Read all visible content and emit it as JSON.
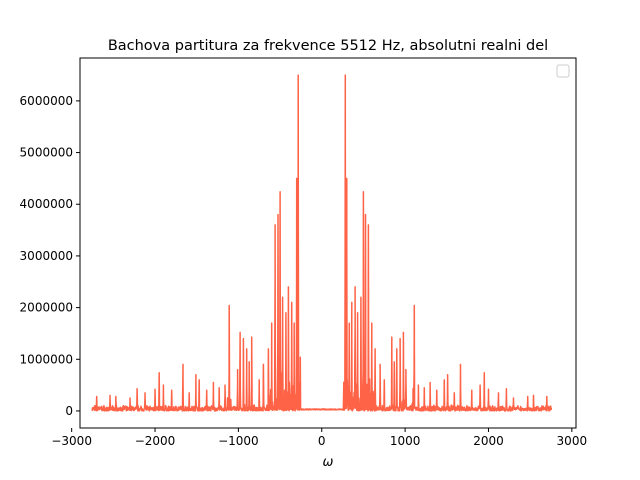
{
  "chart_data": {
    "type": "line",
    "title": "Bachova partitura za frekvence 5512 Hz, absolutni realni del",
    "xlabel": "ω",
    "ylabel": "",
    "xlim": [
      -2900,
      3050
    ],
    "ylim": [
      -330000,
      6830000
    ],
    "x_ticks": [
      -3000,
      -2000,
      -1000,
      0,
      1000,
      2000,
      3000
    ],
    "x_tick_labels": [
      "−3000",
      "−2000",
      "−1000",
      "0",
      "1000",
      "2000",
      "3000"
    ],
    "y_ticks": [
      0,
      1000000,
      2000000,
      3000000,
      4000000,
      5000000,
      6000000
    ],
    "y_tick_labels": [
      "0",
      "1000000",
      "2000000",
      "3000000",
      "4000000",
      "5000000",
      "6000000"
    ],
    "grid": false,
    "legend": "top-right (empty)",
    "series": [
      {
        "color": "#ff6347",
        "x_range": [
          -2756,
          2756
        ],
        "symmetric": true,
        "baseline_noise": 120000,
        "peaks": [
          {
            "x": 282,
            "y": 6500000
          },
          {
            "x": 300,
            "y": 4500000
          },
          {
            "x": 330,
            "y": 1700000
          },
          {
            "x": 360,
            "y": 2100000
          },
          {
            "x": 400,
            "y": 2400000
          },
          {
            "x": 430,
            "y": 1900000
          },
          {
            "x": 470,
            "y": 2200000
          },
          {
            "x": 500,
            "y": 4240000
          },
          {
            "x": 525,
            "y": 3800000
          },
          {
            "x": 560,
            "y": 3600000
          },
          {
            "x": 600,
            "y": 1700000
          },
          {
            "x": 640,
            "y": 1200000
          },
          {
            "x": 700,
            "y": 900000
          },
          {
            "x": 750,
            "y": 600000
          },
          {
            "x": 840,
            "y": 1430000
          },
          {
            "x": 870,
            "y": 950000
          },
          {
            "x": 900,
            "y": 1200000
          },
          {
            "x": 940,
            "y": 1400000
          },
          {
            "x": 980,
            "y": 1520000
          },
          {
            "x": 1010,
            "y": 800000
          },
          {
            "x": 1110,
            "y": 2040000
          },
          {
            "x": 1160,
            "y": 500000
          },
          {
            "x": 1230,
            "y": 450000
          },
          {
            "x": 1300,
            "y": 550000
          },
          {
            "x": 1380,
            "y": 400000
          },
          {
            "x": 1470,
            "y": 600000
          },
          {
            "x": 1510,
            "y": 700000
          },
          {
            "x": 1590,
            "y": 350000
          },
          {
            "x": 1665,
            "y": 900000
          },
          {
            "x": 1800,
            "y": 400000
          },
          {
            "x": 1900,
            "y": 500000
          },
          {
            "x": 1950,
            "y": 740000
          },
          {
            "x": 2000,
            "y": 420000
          },
          {
            "x": 2120,
            "y": 350000
          },
          {
            "x": 2215,
            "y": 430000
          },
          {
            "x": 2300,
            "y": 250000
          },
          {
            "x": 2470,
            "y": 280000
          },
          {
            "x": 2540,
            "y": 300000
          },
          {
            "x": 2700,
            "y": 280000
          }
        ]
      }
    ]
  }
}
